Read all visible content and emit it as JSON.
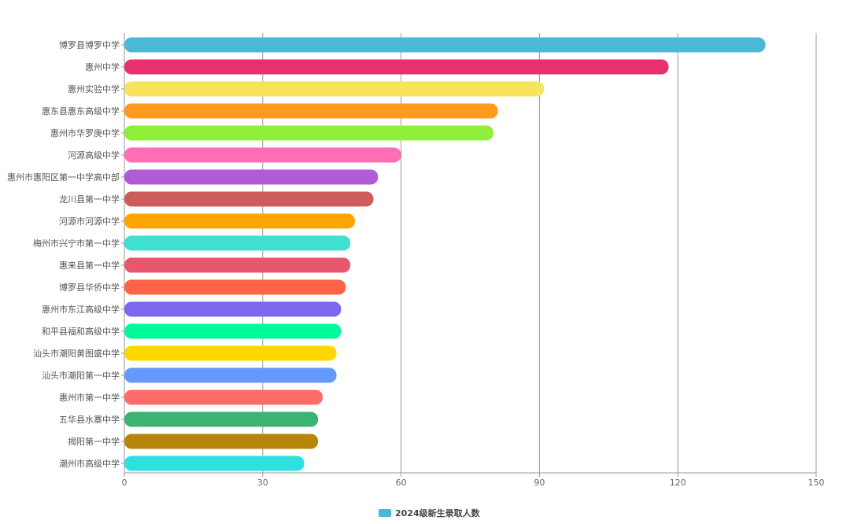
{
  "chart_data": {
    "type": "bar",
    "orientation": "horizontal",
    "title": "",
    "xlabel": "",
    "ylabel": "",
    "xlim": [
      0,
      150
    ],
    "x_ticks": [
      0,
      30,
      60,
      90,
      120,
      150
    ],
    "grid": true,
    "legend_position": "bottom-center",
    "categories": [
      "博罗县博罗中学",
      "惠州中学",
      "惠州实验中学",
      "惠东县惠东高级中学",
      "惠州市华罗庚中学",
      "河源高级中学",
      "惠州市惠阳区第一中学高中部",
      "龙川县第一中学",
      "河源市河源中学",
      "梅州市兴宁市第一中学",
      "惠来县第一中学",
      "博罗县华侨中学",
      "惠州市东江高级中学",
      "和平县福和高级中学",
      "汕头市潮阳黄图盛中学",
      "汕头市潮阳第一中学",
      "惠州市第一中学",
      "五华县水寨中学",
      "揭阳第一中学",
      "潮州市高级中学"
    ],
    "series": [
      {
        "name": "2024级新生录取人数",
        "values": [
          139,
          118,
          91,
          81,
          80,
          60,
          55,
          54,
          50,
          49,
          49,
          48,
          47,
          47,
          46,
          46,
          43,
          42,
          42,
          39
        ]
      }
    ],
    "colors": [
      "#4ab8d6",
      "#e8306e",
      "#f5e45c",
      "#ff9a1f",
      "#8ef03a",
      "#ff6eb4",
      "#b25bd6",
      "#cd5c5c",
      "#ffa500",
      "#40e0d0",
      "#e8576e",
      "#ff6347",
      "#7b68ee",
      "#00fa9a",
      "#ffd700",
      "#6699ff",
      "#ff6b6b",
      "#3cb371",
      "#b8860b",
      "#2ee0e0"
    ],
    "legend_color": "#4ab8d6"
  }
}
